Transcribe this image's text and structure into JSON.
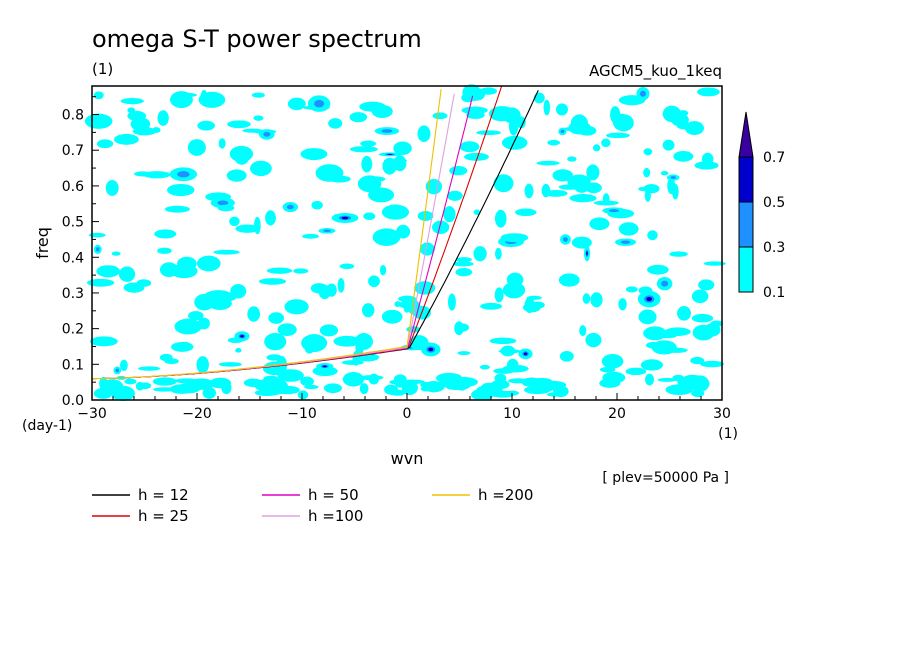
{
  "chart_data": {
    "type": "heatmap",
    "title": "omega S-T power spectrum",
    "units": "(1)",
    "run_label": "AGCM5_kuo_1keq",
    "xlabel": "wvn",
    "ylabel": "freq",
    "y_unit": "(day-1)",
    "x_unit": "(1)",
    "level_note": "[ plev=50000 Pa ]",
    "xlim": [
      -30,
      30
    ],
    "ylim": [
      0,
      0.88
    ],
    "x_ticks": [
      "−30",
      "−20",
      "−10",
      "0",
      "10",
      "20",
      "30"
    ],
    "y_ticks": [
      "0.0",
      "0.1",
      "0.2",
      "0.3",
      "0.4",
      "0.5",
      "0.6",
      "0.7",
      "0.8"
    ],
    "contour_levels": [
      "0.1",
      "0.3",
      "0.5",
      "0.7"
    ],
    "level_colors": [
      "#00ffff",
      "#1e90ff",
      "#0000cd",
      "#3b00a0"
    ],
    "dispersion_curves": [
      {
        "name": "h = 12",
        "color": "#000000",
        "h": 12
      },
      {
        "name": "h = 25",
        "color": "#e00000",
        "h": 25
      },
      {
        "name": "h = 50",
        "color": "#e000c0",
        "h": 50
      },
      {
        "name": "h =100",
        "color": "#e0a0e0",
        "h": 100
      },
      {
        "name": "h =200",
        "color": "#f0c000",
        "h": 200
      }
    ]
  }
}
